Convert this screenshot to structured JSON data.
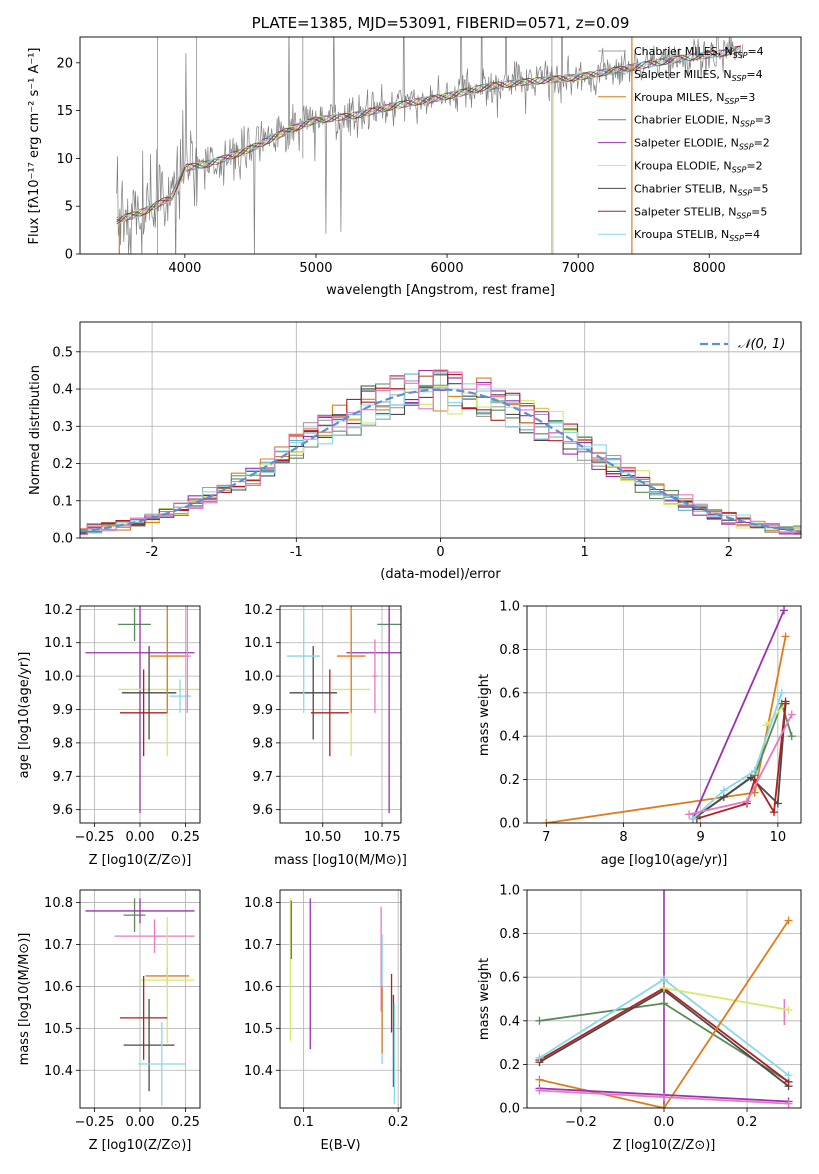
{
  "colors": {
    "chabrier_miles": "#a0a0a0",
    "salpeter_miles": "#5fb3c8",
    "kroupa_miles": "#e07b1a",
    "chabrier_elodie": "#5a8a5a",
    "salpeter_elodie": "#9b30b0",
    "kroupa_elodie": "#d8e86a",
    "chabrier_stelib": "#4a4a4a",
    "salpeter_stelib": "#b02020",
    "kroupa_stelib": "#88d8e8",
    "pink": "#e878c0",
    "normal": "#5b8fd8",
    "spectrum": "#808080"
  },
  "chart_data": [
    {
      "id": "spectrum",
      "type": "line",
      "title": "PLATE=1385, MJD=53091, FIBERID=0571, z=0.09",
      "xlabel": "wavelength [Angstrom, rest frame]",
      "ylabel": "Flux [fλ10⁻¹⁷ erg cm⁻² s⁻¹ A⁻¹]",
      "xlim": [
        3200,
        8700
      ],
      "ylim": [
        0,
        22.7
      ],
      "xticks": [
        4000,
        5000,
        6000,
        7000,
        8000
      ],
      "yticks": [
        0,
        5,
        10,
        15,
        20
      ],
      "grid": false,
      "legend_placement": "top-right",
      "legend": [
        {
          "label": "Chabrier MILES, N_SSP=4",
          "main": "Chabrier MILES, N",
          "sub": "SSP",
          "tail": "=4",
          "color_key": "chabrier_miles"
        },
        {
          "label": "Salpeter MILES, N_SSP=4",
          "main": "Salpeter MILES, N",
          "sub": "SSP",
          "tail": "=4",
          "color_key": "salpeter_miles"
        },
        {
          "label": "Kroupa MILES, N_SSP=3",
          "main": "Kroupa MILES, N",
          "sub": "SSP",
          "tail": "=3",
          "color_key": "kroupa_miles"
        },
        {
          "label": "Chabrier ELODIE, N_SSP=3",
          "main": "Chabrier ELODIE, N",
          "sub": "SSP",
          "tail": "=3",
          "color_key": "chabrier_elodie"
        },
        {
          "label": "Salpeter ELODIE, N_SSP=2",
          "main": "Salpeter ELODIE, N",
          "sub": "SSP",
          "tail": "=2",
          "color_key": "salpeter_elodie"
        },
        {
          "label": "Kroupa ELODIE, N_SSP=2",
          "main": "Kroupa ELODIE, N",
          "sub": "SSP",
          "tail": "=2",
          "color_key": "kroupa_elodie"
        },
        {
          "label": "Chabrier STELIB, N_SSP=5",
          "main": "Chabrier STELIB, N",
          "sub": "SSP",
          "tail": "=5",
          "color_key": "chabrier_stelib"
        },
        {
          "label": "Salpeter STELIB, N_SSP=5",
          "main": "Salpeter STELIB, N",
          "sub": "SSP",
          "tail": "=5",
          "color_key": "salpeter_stelib"
        },
        {
          "label": "Kroupa STELIB, N_SSP=4",
          "main": "Kroupa STELIB, N",
          "sub": "SSP",
          "tail": "=4",
          "color_key": "kroupa_stelib"
        }
      ],
      "continuum": [
        [
          3480,
          3.5
        ],
        [
          3700,
          4.5
        ],
        [
          3900,
          6
        ],
        [
          4000,
          9
        ],
        [
          4200,
          9.5
        ],
        [
          4500,
          11
        ],
        [
          4800,
          13
        ],
        [
          5000,
          14
        ],
        [
          5300,
          14.5
        ],
        [
          5600,
          15.5
        ],
        [
          6000,
          16.5
        ],
        [
          6300,
          17.5
        ],
        [
          6600,
          18
        ],
        [
          7000,
          18.5
        ],
        [
          7400,
          19.5
        ],
        [
          7800,
          20.5
        ],
        [
          8100,
          21
        ],
        [
          8250,
          21.5
        ]
      ]
    },
    {
      "id": "residuals",
      "type": "histogram",
      "xlabel": "(data-model)/error",
      "ylabel": "Normed distribution",
      "xlim": [
        -2.5,
        2.5
      ],
      "ylim": [
        0,
        0.58
      ],
      "xticks": [
        -2,
        -1,
        0,
        1,
        2
      ],
      "yticks": [
        0.0,
        0.1,
        0.2,
        0.3,
        0.4,
        0.5
      ],
      "grid": true,
      "legend_placement": "top-right",
      "legend": [
        {
          "label": "N(0,1)",
          "color_key": "normal"
        }
      ],
      "bin_width": 0.1
    },
    {
      "id": "age-vs-Z",
      "type": "errorbar",
      "xlabel": "Z [log10(Z/Z⊙)]",
      "ylabel": "age [log10(age/yr)]",
      "xlim": [
        -0.33,
        0.33
      ],
      "ylim": [
        9.56,
        10.21
      ],
      "xticks": [
        -0.25,
        0,
        0.25
      ],
      "xticklabels": [
        "−0.25",
        "0.00",
        "0.25"
      ],
      "yticks": [
        9.6,
        9.7,
        9.8,
        9.9,
        10.0,
        10.1,
        10.2
      ],
      "grid": true,
      "points": [
        {
          "x": -0.03,
          "xerr": 0.09,
          "y": 10.155,
          "yerr": 0.05,
          "color_key": "chabrier_elodie"
        },
        {
          "x": 0.0,
          "xerr": 0.3,
          "y": 10.07,
          "yerr": 0.48,
          "color_key": "salpeter_elodie"
        },
        {
          "x": 0.15,
          "xerr": 0.27,
          "y": 9.96,
          "yerr": 0.2,
          "color_key": "kroupa_elodie"
        },
        {
          "x": 0.05,
          "xerr": 0.15,
          "y": 9.95,
          "yerr": 0.14,
          "color_key": "chabrier_stelib"
        },
        {
          "x": 0.02,
          "xerr": 0.13,
          "y": 9.89,
          "yerr": 0.13,
          "color_key": "salpeter_stelib"
        },
        {
          "x": 0.15,
          "xerr": 0.1,
          "y": 10.06,
          "yerr": 0.17,
          "color_key": "kroupa_miles"
        },
        {
          "x": 0.22,
          "xerr": 0.06,
          "y": 9.94,
          "yerr": 0.05,
          "color_key": "kroupa_stelib"
        },
        {
          "x": 0.26,
          "xerr": 0.02,
          "y": 10.06,
          "yerr": 0.17,
          "color_key": "pink"
        }
      ]
    },
    {
      "id": "age-vs-mass",
      "type": "errorbar",
      "xlabel": "mass [log10(M/M⊙)]",
      "ylabel": "",
      "xlim": [
        10.32,
        10.83
      ],
      "ylim": [
        9.56,
        10.21
      ],
      "xticks": [
        10.5,
        10.75
      ],
      "xticklabels": [
        "10.50",
        "10.75"
      ],
      "yticks": [
        9.6,
        9.7,
        9.8,
        9.9,
        10.0,
        10.1,
        10.2
      ],
      "grid": true,
      "points": [
        {
          "x": 10.78,
          "xerr": 0.05,
          "y": 10.155,
          "yerr": 0.05,
          "color_key": "chabrier_elodie"
        },
        {
          "x": 10.78,
          "xerr": 0.18,
          "y": 10.07,
          "yerr": 0.48,
          "color_key": "salpeter_elodie"
        },
        {
          "x": 10.62,
          "xerr": 0.08,
          "y": 9.96,
          "yerr": 0.2,
          "color_key": "kroupa_elodie"
        },
        {
          "x": 10.46,
          "xerr": 0.1,
          "y": 9.95,
          "yerr": 0.14,
          "color_key": "chabrier_stelib"
        },
        {
          "x": 10.53,
          "xerr": 0.08,
          "y": 9.89,
          "yerr": 0.13,
          "color_key": "salpeter_stelib"
        },
        {
          "x": 10.62,
          "xerr": 0.06,
          "y": 10.06,
          "yerr": 0.17,
          "color_key": "kroupa_miles"
        },
        {
          "x": 10.42,
          "xerr": 0.07,
          "y": 10.06,
          "yerr": 0.17,
          "color_key": "kroupa_stelib"
        },
        {
          "x": 10.72,
          "xerr": 0.01,
          "y": 10.0,
          "yerr": 0.11,
          "color_key": "pink"
        }
      ]
    },
    {
      "id": "weight-vs-age",
      "type": "line",
      "xlabel": "age [log10(age/yr)]",
      "ylabel": "mass weight",
      "xlim": [
        6.75,
        10.3
      ],
      "ylim": [
        0,
        1
      ],
      "xticks": [
        7,
        8,
        9,
        10
      ],
      "yticks": [
        0.0,
        0.2,
        0.4,
        0.6,
        0.8,
        1.0
      ],
      "grid": true,
      "series": [
        {
          "color_key": "kroupa_miles",
          "x": [
            7.0,
            9.7,
            10.1
          ],
          "y": [
            0.0,
            0.14,
            0.86
          ]
        },
        {
          "color_key": "salpeter_elodie",
          "x": [
            8.9,
            10.08
          ],
          "y": [
            0.02,
            0.98
          ]
        },
        {
          "color_key": "chabrier_elodie",
          "x": [
            8.95,
            9.7,
            10.05,
            10.18
          ],
          "y": [
            0.03,
            0.22,
            0.55,
            0.4
          ]
        },
        {
          "color_key": "kroupa_elodie",
          "x": [
            9.85,
            10.1
          ],
          "y": [
            0.45,
            0.55
          ]
        },
        {
          "color_key": "chabrier_stelib",
          "x": [
            8.9,
            9.3,
            9.65,
            10.0,
            10.1
          ],
          "y": [
            0.02,
            0.12,
            0.21,
            0.09,
            0.55
          ]
        },
        {
          "color_key": "salpeter_stelib",
          "x": [
            8.95,
            9.6,
            9.7,
            9.95,
            10.1
          ],
          "y": [
            0.02,
            0.09,
            0.2,
            0.05,
            0.56
          ]
        },
        {
          "color_key": "kroupa_stelib",
          "x": [
            8.9,
            9.3,
            9.7,
            10.05
          ],
          "y": [
            0.02,
            0.15,
            0.24,
            0.6
          ]
        },
        {
          "color_key": "pink",
          "x": [
            8.85,
            9.6,
            10.18
          ],
          "y": [
            0.04,
            0.1,
            0.5
          ]
        }
      ]
    },
    {
      "id": "mass-vs-Z",
      "type": "errorbar",
      "xlabel": "Z [log10(Z/Z⊙)]",
      "ylabel": "mass [log10(M/M⊙)]",
      "xlim": [
        -0.33,
        0.33
      ],
      "ylim": [
        10.31,
        10.83
      ],
      "xticks": [
        -0.25,
        0,
        0.25
      ],
      "xticklabels": [
        "−0.25",
        "0.00",
        "0.25"
      ],
      "yticks": [
        10.4,
        10.5,
        10.6,
        10.7,
        10.8
      ],
      "grid": true,
      "points": [
        {
          "x": -0.03,
          "xerr": 0.06,
          "y": 10.77,
          "yerr": 0.04,
          "color_key": "chabrier_elodie"
        },
        {
          "x": 0.0,
          "xerr": 0.3,
          "y": 10.78,
          "yerr": 0.03,
          "color_key": "salpeter_elodie"
        },
        {
          "x": 0.08,
          "xerr": 0.22,
          "y": 10.72,
          "yerr": 0.04,
          "color_key": "pink"
        },
        {
          "x": 0.15,
          "xerr": 0.12,
          "y": 10.625,
          "yerr": 0.02,
          "color_key": "kroupa_miles"
        },
        {
          "x": 0.15,
          "xerr": 0.15,
          "y": 10.615,
          "yerr": 0.15,
          "color_key": "kroupa_elodie"
        },
        {
          "x": 0.02,
          "xerr": 0.13,
          "y": 10.525,
          "yerr": 0.1,
          "color_key": "salpeter_stelib"
        },
        {
          "x": 0.05,
          "xerr": 0.14,
          "y": 10.46,
          "yerr": 0.11,
          "color_key": "chabrier_stelib"
        },
        {
          "x": 0.12,
          "xerr": 0.13,
          "y": 10.415,
          "yerr": 0.1,
          "color_key": "kroupa_stelib"
        }
      ]
    },
    {
      "id": "mass-vs-ebv",
      "type": "errorbar",
      "xlabel": "E(B-V)",
      "ylabel": "",
      "xlim": [
        0.075,
        0.203
      ],
      "ylim": [
        10.31,
        10.83
      ],
      "xticks": [
        0.1,
        0.2
      ],
      "xticklabels": [
        "0.1",
        "0.2"
      ],
      "yticks": [
        10.4,
        10.5,
        10.6,
        10.7,
        10.8
      ],
      "grid": true,
      "points": [
        {
          "x": 0.086,
          "y": 10.64,
          "yerr": 0.17,
          "color_key": "kroupa_elodie"
        },
        {
          "x": 0.087,
          "y": 10.735,
          "yerr": 0.07,
          "color_key": "chabrier_elodie"
        },
        {
          "x": 0.107,
          "y": 10.63,
          "yerr": 0.18,
          "color_key": "salpeter_elodie"
        },
        {
          "x": 0.182,
          "y": 10.665,
          "yerr": 0.125,
          "color_key": "pink"
        },
        {
          "x": 0.183,
          "y": 10.57,
          "yerr": 0.155,
          "color_key": "kroupa_stelib"
        },
        {
          "x": 0.183,
          "y": 10.52,
          "yerr": 0.08,
          "color_key": "kroupa_miles"
        },
        {
          "x": 0.193,
          "y": 10.56,
          "yerr": 0.07,
          "color_key": "salpeter_stelib"
        },
        {
          "x": 0.195,
          "y": 10.47,
          "yerr": 0.11,
          "color_key": "chabrier_stelib"
        },
        {
          "x": 0.196,
          "y": 10.44,
          "yerr": 0.12,
          "color_key": "kroupa_stelib"
        }
      ]
    },
    {
      "id": "weight-vs-Z",
      "type": "line",
      "xlabel": "Z [log10(Z/Z⊙)]",
      "ylabel": "mass weight",
      "xlim": [
        -0.33,
        0.33
      ],
      "ylim": [
        0,
        1
      ],
      "xticks": [
        -0.2,
        0.0,
        0.2
      ],
      "xticklabels": [
        "−0.2",
        "0.0",
        "0.2"
      ],
      "yticks": [
        0.0,
        0.2,
        0.4,
        0.6,
        0.8,
        1.0
      ],
      "grid": true,
      "series": [
        {
          "color_key": "chabrier_elodie",
          "x": [
            -0.3,
            0.0,
            0.3
          ],
          "y": [
            0.4,
            0.48,
            0.12
          ]
        },
        {
          "color_key": "chabrier_stelib",
          "x": [
            -0.3,
            0.0,
            0.3
          ],
          "y": [
            0.21,
            0.54,
            0.1
          ]
        },
        {
          "color_key": "salpeter_stelib",
          "x": [
            -0.3,
            0.0,
            0.3
          ],
          "y": [
            0.22,
            0.55,
            0.12
          ]
        },
        {
          "color_key": "kroupa_stelib",
          "x": [
            -0.3,
            0.0,
            0.3
          ],
          "y": [
            0.23,
            0.59,
            0.15
          ]
        },
        {
          "color_key": "kroupa_elodie",
          "x": [
            0.0,
            0.3
          ],
          "y": [
            0.55,
            0.45
          ]
        },
        {
          "color_key": "kroupa_miles",
          "x": [
            -0.3,
            0.0,
            0.3
          ],
          "y": [
            0.13,
            0.0,
            0.86
          ]
        },
        {
          "color_key": "salpeter_elodie",
          "x": [
            -0.3,
            0.0,
            0.3
          ],
          "y": [
            0.09,
            0.06,
            0.03
          ]
        },
        {
          "color_key": "pink",
          "x": [
            -0.3,
            0.0,
            0.3
          ],
          "y": [
            0.08,
            0.05,
            0.02
          ]
        }
      ],
      "vertical_bars": [
        {
          "color_key": "salpeter_elodie",
          "x": 0.0,
          "y0": 0.0,
          "y1": 1.0
        },
        {
          "color_key": "pink",
          "x": 0.29,
          "y0": 0.38,
          "y1": 0.5
        }
      ]
    }
  ]
}
